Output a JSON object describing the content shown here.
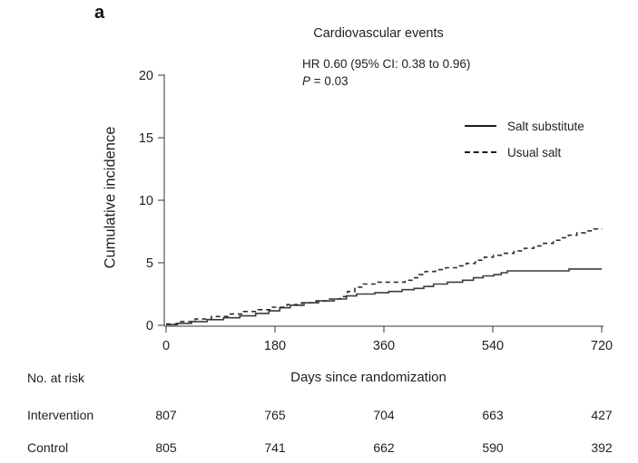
{
  "panel_label": "a",
  "chart_data": {
    "type": "line",
    "subtype": "step-after-cumulative-incidence",
    "title": "Cardiovascular events",
    "annotation": {
      "hr_text": "HR 0.60 (95% CI: 0.38 to 0.96)",
      "p_label": "P",
      "p_rest": " = 0.03"
    },
    "xlabel": "Days since randomization",
    "ylabel": "Cumulative incidence",
    "xlim": [
      0,
      720
    ],
    "ylim": [
      0,
      20
    ],
    "x_ticks": [
      0,
      180,
      360,
      540,
      720
    ],
    "y_ticks": [
      0,
      5,
      10,
      15,
      20
    ],
    "grid": false,
    "legend_position": "upper-right-inside",
    "axis_color": "#333333",
    "series": [
      {
        "name": "Salt substitute",
        "style": "solid",
        "color": "#3d3d3d",
        "points": [
          [
            0,
            0.05
          ],
          [
            18,
            0.15
          ],
          [
            42,
            0.3
          ],
          [
            68,
            0.45
          ],
          [
            95,
            0.6
          ],
          [
            122,
            0.75
          ],
          [
            148,
            0.95
          ],
          [
            170,
            1.15
          ],
          [
            188,
            1.4
          ],
          [
            205,
            1.6
          ],
          [
            228,
            1.8
          ],
          [
            252,
            1.95
          ],
          [
            278,
            2.1
          ],
          [
            298,
            2.35
          ],
          [
            315,
            2.5
          ],
          [
            345,
            2.6
          ],
          [
            368,
            2.7
          ],
          [
            390,
            2.85
          ],
          [
            410,
            2.95
          ],
          [
            426,
            3.1
          ],
          [
            442,
            3.3
          ],
          [
            465,
            3.45
          ],
          [
            490,
            3.6
          ],
          [
            508,
            3.8
          ],
          [
            524,
            3.95
          ],
          [
            542,
            4.05
          ],
          [
            554,
            4.2
          ],
          [
            564,
            4.35
          ],
          [
            666,
            4.5
          ],
          [
            720,
            4.5
          ]
        ]
      },
      {
        "name": "Usual salt",
        "style": "dashed",
        "color": "#2e2e2e",
        "points": [
          [
            0,
            0.1
          ],
          [
            22,
            0.3
          ],
          [
            48,
            0.5
          ],
          [
            75,
            0.7
          ],
          [
            102,
            0.9
          ],
          [
            128,
            1.1
          ],
          [
            152,
            1.25
          ],
          [
            176,
            1.45
          ],
          [
            200,
            1.65
          ],
          [
            224,
            1.8
          ],
          [
            248,
            1.95
          ],
          [
            270,
            2.1
          ],
          [
            288,
            2.3
          ],
          [
            300,
            2.7
          ],
          [
            312,
            3.05
          ],
          [
            326,
            3.3
          ],
          [
            348,
            3.45
          ],
          [
            395,
            3.6
          ],
          [
            408,
            3.8
          ],
          [
            418,
            4.05
          ],
          [
            428,
            4.3
          ],
          [
            445,
            4.45
          ],
          [
            462,
            4.6
          ],
          [
            480,
            4.75
          ],
          [
            496,
            4.95
          ],
          [
            511,
            5.2
          ],
          [
            526,
            5.45
          ],
          [
            541,
            5.6
          ],
          [
            558,
            5.75
          ],
          [
            575,
            5.95
          ],
          [
            592,
            6.15
          ],
          [
            608,
            6.35
          ],
          [
            624,
            6.55
          ],
          [
            640,
            6.8
          ],
          [
            653,
            7.0
          ],
          [
            665,
            7.2
          ],
          [
            679,
            7.4
          ],
          [
            693,
            7.55
          ],
          [
            707,
            7.7
          ],
          [
            720,
            7.75
          ]
        ]
      }
    ]
  },
  "risk_table": {
    "header": "No. at risk",
    "columns_days": [
      0,
      180,
      360,
      540,
      720
    ],
    "rows": [
      {
        "label": "Intervention",
        "values": [
          "807",
          "765",
          "704",
          "663",
          "427"
        ]
      },
      {
        "label": "Control",
        "values": [
          "805",
          "741",
          "662",
          "590",
          "392"
        ]
      }
    ]
  }
}
